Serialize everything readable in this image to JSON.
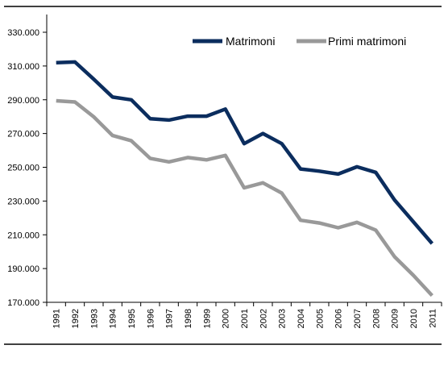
{
  "chart_data": {
    "type": "line",
    "title": "",
    "xlabel": "",
    "ylabel": "",
    "categories": [
      "1991",
      "1992",
      "1993",
      "1994",
      "1995",
      "1996",
      "1997",
      "1998",
      "1999",
      "2000",
      "2001",
      "2002",
      "2003",
      "2004",
      "2005",
      "2006",
      "2007",
      "2008",
      "2009",
      "2010",
      "2011"
    ],
    "ylim": [
      170000,
      330000
    ],
    "yticks": [
      170000,
      190000,
      210000,
      230000,
      250000,
      270000,
      290000,
      310000,
      330000
    ],
    "ytick_labels": [
      "170.000",
      "190.000",
      "210.000",
      "230.000",
      "250.000",
      "270.000",
      "290.000",
      "310.000",
      "330.000"
    ],
    "grid": false,
    "legend_position": "top-right",
    "series": [
      {
        "name": "Matrimoni",
        "color": "#0b2d5e",
        "values": [
          312000,
          312400,
          302200,
          291600,
          290000,
          278800,
          278000,
          280300,
          280300,
          284500,
          264000,
          270000,
          264000,
          249000,
          247700,
          246000,
          250300,
          247000,
          230600,
          217700,
          204800
        ]
      },
      {
        "name": "Primi matrimoni",
        "color": "#999999",
        "values": [
          289400,
          288700,
          279900,
          268800,
          265700,
          255300,
          253200,
          255800,
          254400,
          257000,
          237800,
          240800,
          234700,
          218600,
          217000,
          214200,
          217400,
          212800,
          197000,
          186000,
          174000
        ]
      }
    ]
  }
}
